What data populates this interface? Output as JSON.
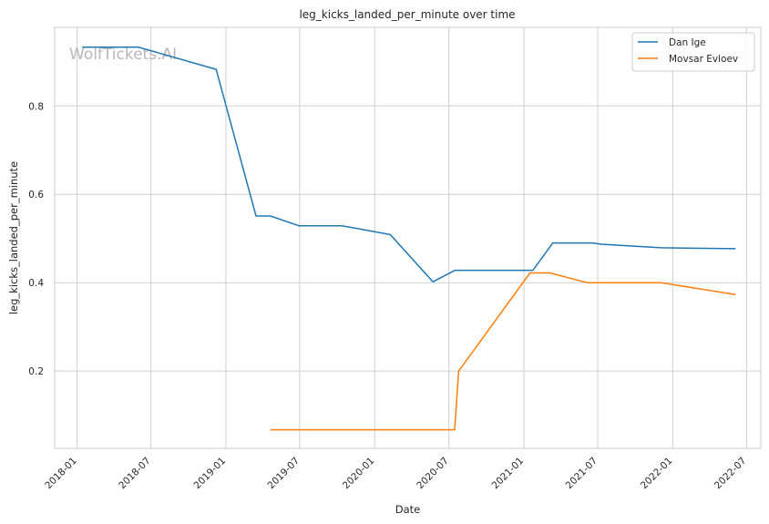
{
  "chart_data": {
    "type": "line",
    "title": "leg_kicks_landed_per_minute over time",
    "xlabel": "Date",
    "ylabel": "leg_kicks_landed_per_minute",
    "watermark": "WolfTickets.AI",
    "xlim": [
      "2017-11-07",
      "2022-08-05"
    ],
    "ylim": [
      0.025,
      0.978
    ],
    "x_ticks": [
      "2018-01",
      "2018-07",
      "2019-01",
      "2019-07",
      "2020-01",
      "2020-07",
      "2021-01",
      "2021-07",
      "2022-01",
      "2022-07"
    ],
    "y_ticks": [
      0.2,
      0.4,
      0.6,
      0.8
    ],
    "grid": true,
    "legend_position": "top-right",
    "series": [
      {
        "name": "Dan Ige",
        "color": "#1f77b4",
        "x": [
          "2018-01-14",
          "2018-06-01",
          "2018-12-08",
          "2019-03-16",
          "2019-04-20",
          "2019-06-29",
          "2019-10-12",
          "2020-02-08",
          "2020-05-23",
          "2020-07-16",
          "2021-01-23",
          "2021-03-13",
          "2021-06-19",
          "2021-07-10",
          "2021-12-04",
          "2022-06-04"
        ],
        "y": [
          0.933,
          0.933,
          0.883,
          0.551,
          0.551,
          0.529,
          0.529,
          0.509,
          0.402,
          0.428,
          0.428,
          0.49,
          0.49,
          0.487,
          0.479,
          0.477
        ]
      },
      {
        "name": "Movsar Evloev",
        "color": "#ff7f0e",
        "x": [
          "2019-04-20",
          "2020-07-15",
          "2020-07-25",
          "2021-01-16",
          "2021-03-06",
          "2021-06-05",
          "2021-12-04",
          "2022-06-04"
        ],
        "y": [
          0.067,
          0.067,
          0.2,
          0.422,
          0.422,
          0.4,
          0.4,
          0.373
        ]
      }
    ]
  }
}
